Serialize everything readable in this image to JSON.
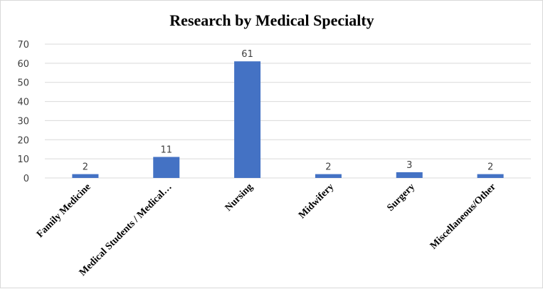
{
  "chart_data": {
    "type": "bar",
    "title": "Research by Medical Specialty",
    "categories": [
      "Family Medicine",
      "Medical Students / Medical…",
      "Nursing",
      "Midwifery",
      "Surgery",
      "Miscellaneous/Other"
    ],
    "values": [
      2,
      11,
      61,
      2,
      3,
      2
    ],
    "data_labels": [
      "2",
      "11",
      "61",
      "2",
      "3",
      "2"
    ],
    "y_ticks": [
      "0",
      "10",
      "20",
      "30",
      "40",
      "50",
      "60",
      "70"
    ],
    "ylim": [
      0,
      70
    ],
    "grid": true,
    "legend": "none",
    "bar_color": "#4472C4"
  }
}
